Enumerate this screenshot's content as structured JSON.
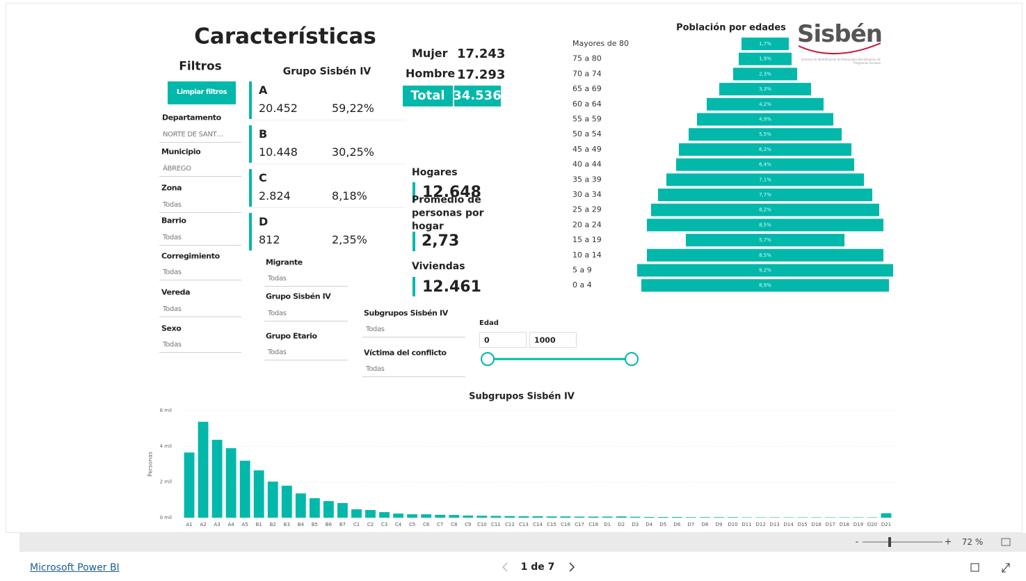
{
  "title": "Características",
  "filters": {
    "title": "Filtros",
    "clear_button": "Limpiar filtros",
    "slicers": [
      {
        "label": "Departamento",
        "value": "NORTE DE SANT…"
      },
      {
        "label": "Municipio",
        "value": "ÁBREGO"
      },
      {
        "label": "Zona",
        "value": "Todas"
      },
      {
        "label": "Barrio",
        "value": "Todas"
      },
      {
        "label": "Corregimiento",
        "value": "Todas"
      },
      {
        "label": "Vereda",
        "value": "Todas"
      },
      {
        "label": "Sexo",
        "value": "Todas"
      },
      {
        "label": "Migrante",
        "value": "Todas"
      },
      {
        "label": "Grupo Sisbén IV",
        "value": "Todas"
      },
      {
        "label": "Grupo Etario",
        "value": "Todas"
      },
      {
        "label": "Subgrupos Sisbén IV",
        "value": "Todas"
      },
      {
        "label": "Víctima del conflicto",
        "value": "Todas"
      }
    ],
    "age": {
      "label": "Edad",
      "min": "0",
      "max": "1000"
    }
  },
  "groups": {
    "title": "Grupo Sisbén IV",
    "items": [
      {
        "name": "A",
        "count": "20.452",
        "share": "59,22%"
      },
      {
        "name": "B",
        "count": "10.448",
        "share": "30,25%"
      },
      {
        "name": "C",
        "count": "2.824",
        "share": "8,18%"
      },
      {
        "name": "D",
        "count": "812",
        "share": "2,35%"
      }
    ]
  },
  "gender": {
    "female_label": "Mujer",
    "female": "17.243",
    "male_label": "Hombre",
    "male": "17.293",
    "total_label": "Total",
    "total": "34.536"
  },
  "households": {
    "homes_label": "Hogares",
    "homes": "12.648",
    "avg_label": "Promedio de personas por hogar",
    "avg": "2,73",
    "dwellings_label": "Viviendas",
    "dwellings": "12.461"
  },
  "logo": {
    "name": "Sisbén",
    "tagline": "Sistema de Identificación de Potenciales Beneficiarios de Programas Sociales"
  },
  "chart_data": [
    {
      "type": "pyramid",
      "title": "Población por edades",
      "color": "#01b8aa",
      "categories": [
        "Mayores de 80",
        "75 a 80",
        "70 a 74",
        "65 a 69",
        "60 a 64",
        "55 a 59",
        "50 a 54",
        "45 a 49",
        "40 a 44",
        "35 a 39",
        "30 a 34",
        "25 a 29",
        "20 a 24",
        "15 a 19",
        "10 a 14",
        "5 a 9",
        "0 a 4"
      ],
      "values": [
        1.7,
        1.9,
        2.3,
        3.3,
        4.2,
        4.9,
        5.5,
        6.2,
        6.4,
        7.1,
        7.7,
        8.2,
        8.5,
        5.7,
        8.5,
        9.2,
        8.9
      ],
      "value_labels": [
        "1,7%",
        "1,9%",
        "2,3%",
        "3,3%",
        "4,2%",
        "4,9%",
        "5,5%",
        "6,2%",
        "6,4%",
        "7,1%",
        "7,7%",
        "8,2%",
        "8,5%",
        "5,7%",
        "8,5%",
        "9,2%",
        "8,9%"
      ]
    },
    {
      "type": "bar",
      "title": "Subgrupos Sisbén IV",
      "y_label": "Personas",
      "color": "#01b8aa",
      "grid": true,
      "categories": [
        "A1",
        "A2",
        "A3",
        "A4",
        "A5",
        "B1",
        "B2",
        "B3",
        "B4",
        "B5",
        "B6",
        "B7",
        "C1",
        "C2",
        "C3",
        "C4",
        "C5",
        "C6",
        "C7",
        "C8",
        "C9",
        "C10",
        "C11",
        "C12",
        "C13",
        "C14",
        "C15",
        "C16",
        "C17",
        "C18",
        "D1",
        "D2",
        "D3",
        "D4",
        "D5",
        "D6",
        "D7",
        "D8",
        "D9",
        "D10",
        "D11",
        "D12",
        "D13",
        "D14",
        "D15",
        "D16",
        "D17",
        "D18",
        "D19",
        "D20",
        "D21"
      ],
      "values": [
        3650,
        5370,
        4360,
        3890,
        3190,
        2650,
        2020,
        1790,
        1360,
        1090,
        930,
        820,
        470,
        430,
        310,
        230,
        190,
        190,
        160,
        150,
        120,
        110,
        100,
        90,
        80,
        80,
        70,
        70,
        60,
        60,
        60,
        70,
        50,
        40,
        40,
        40,
        30,
        30,
        30,
        30,
        20,
        20,
        20,
        20,
        20,
        20,
        20,
        20,
        20,
        20,
        250
      ],
      "ylim": [
        0,
        6000
      ],
      "yticks": [
        {
          "value": 0,
          "label": "0 mil"
        },
        {
          "value": 2000,
          "label": "2 mil"
        },
        {
          "value": 4000,
          "label": "4 mil"
        },
        {
          "value": 6000,
          "label": "6 mil"
        }
      ]
    }
  ],
  "footer": {
    "link": "Microsoft Power BI",
    "pager": "1 de 7",
    "zoom": "72 %"
  }
}
